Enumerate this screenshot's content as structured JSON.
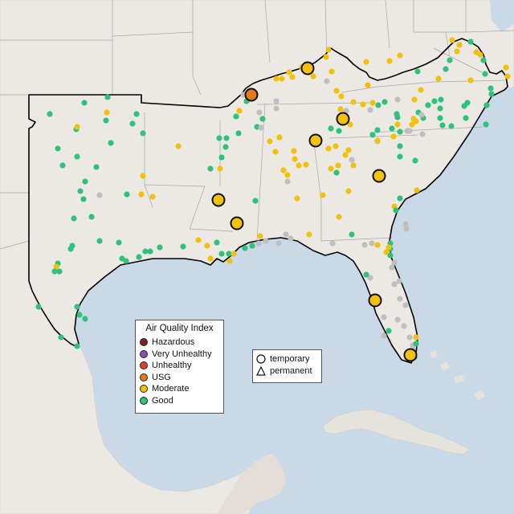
{
  "map": {
    "legend": {
      "title": "Air Quality Index",
      "categories": [
        {
          "label": "Hazardous",
          "color": "#7e2129"
        },
        {
          "label": "Very Unhealthy",
          "color": "#8b4fb0"
        },
        {
          "label": "Unhealthy",
          "color": "#e0412d"
        },
        {
          "label": "USG",
          "color": "#e8771d"
        },
        {
          "label": "Moderate",
          "color": "#f2c10a"
        },
        {
          "label": "Good",
          "color": "#2ec27a"
        }
      ],
      "no_data_color": "#bfbfbf"
    },
    "type_legend": {
      "temporary": "temporary",
      "permanent": "permanent"
    },
    "colors": {
      "ocean": "#c9d9e8",
      "land": "#ece9e4",
      "region_outline": "#000000",
      "state_border": "#a9a9a9"
    }
  }
}
